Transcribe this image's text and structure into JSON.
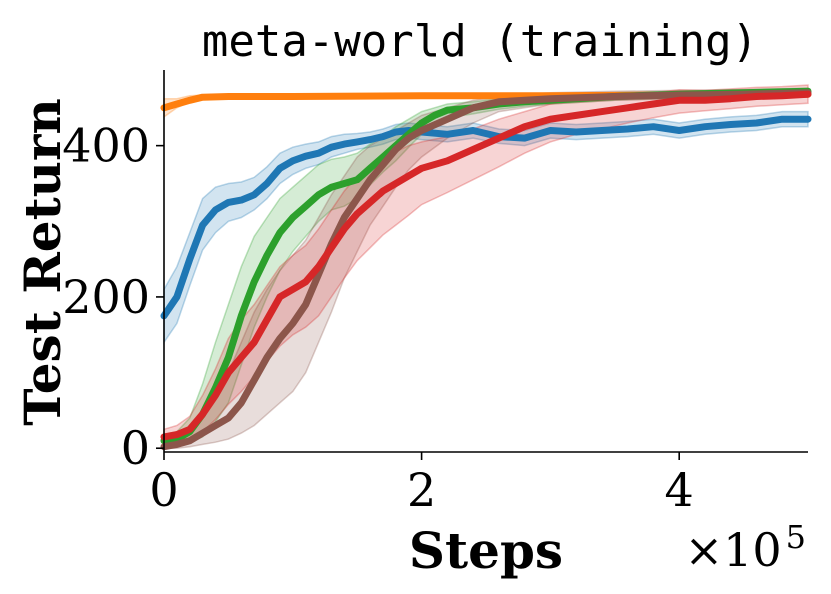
{
  "chart_data": {
    "type": "line",
    "title": "meta-world (training)",
    "xlabel": "Steps",
    "ylabel": "Test Return",
    "x_multiplier": {
      "base": "×10",
      "exponent": "5"
    },
    "xlim": [
      0,
      5
    ],
    "ylim": [
      -5,
      500
    ],
    "x_ticks": [
      {
        "value": 0,
        "label": "0"
      },
      {
        "value": 2,
        "label": "2"
      },
      {
        "value": 4,
        "label": "4"
      }
    ],
    "y_ticks": [
      {
        "value": 0,
        "label": "0"
      },
      {
        "value": 200,
        "label": "200"
      },
      {
        "value": 400,
        "label": "400"
      }
    ],
    "grid": false,
    "legend": "none",
    "series": [
      {
        "color": "#ff7f0e",
        "x": [
          0,
          0.1,
          0.2,
          0.3,
          0.5,
          1.0,
          2.0,
          3.0,
          4.0,
          5.0
        ],
        "values": [
          450,
          455,
          460,
          464,
          465,
          465,
          466,
          466,
          467,
          468
        ],
        "lower": [
          438,
          450,
          458,
          462,
          463,
          463,
          464,
          464,
          465,
          466
        ],
        "upper": [
          462,
          462,
          466,
          467,
          467,
          467,
          468,
          468,
          469,
          470
        ]
      },
      {
        "color": "#1f77b4",
        "x": [
          0,
          0.1,
          0.2,
          0.3,
          0.4,
          0.5,
          0.6,
          0.7,
          0.8,
          0.9,
          1.0,
          1.1,
          1.2,
          1.3,
          1.4,
          1.5,
          1.6,
          1.7,
          1.8,
          1.9,
          2.0,
          2.2,
          2.4,
          2.6,
          2.8,
          3.0,
          3.2,
          3.4,
          3.6,
          3.8,
          4.0,
          4.2,
          4.4,
          4.6,
          4.8,
          5.0
        ],
        "values": [
          175,
          200,
          250,
          295,
          315,
          325,
          328,
          335,
          350,
          370,
          380,
          386,
          390,
          398,
          402,
          405,
          408,
          412,
          418,
          420,
          418,
          415,
          420,
          412,
          410,
          420,
          418,
          420,
          422,
          425,
          420,
          425,
          428,
          430,
          435,
          435
        ],
        "lower": [
          140,
          165,
          215,
          262,
          285,
          300,
          305,
          315,
          330,
          350,
          362,
          370,
          375,
          385,
          390,
          395,
          398,
          402,
          408,
          410,
          408,
          405,
          410,
          403,
          400,
          410,
          408,
          410,
          412,
          415,
          410,
          415,
          418,
          420,
          425,
          425
        ],
        "upper": [
          210,
          240,
          285,
          330,
          345,
          350,
          352,
          358,
          372,
          390,
          398,
          402,
          405,
          412,
          415,
          416,
          418,
          422,
          428,
          430,
          428,
          425,
          430,
          422,
          420,
          430,
          428,
          430,
          432,
          435,
          430,
          435,
          438,
          440,
          445,
          445
        ]
      },
      {
        "color": "#2ca02c",
        "x": [
          0,
          0.1,
          0.2,
          0.3,
          0.4,
          0.5,
          0.6,
          0.7,
          0.8,
          0.9,
          1.0,
          1.1,
          1.2,
          1.3,
          1.4,
          1.5,
          1.6,
          1.7,
          1.8,
          1.9,
          2.0,
          2.1,
          2.2,
          2.4,
          2.6,
          2.8,
          3.0,
          3.5,
          4.0,
          4.5,
          5.0
        ],
        "values": [
          10,
          12,
          22,
          45,
          80,
          120,
          175,
          220,
          255,
          285,
          305,
          320,
          335,
          345,
          350,
          355,
          370,
          385,
          400,
          415,
          430,
          440,
          447,
          450,
          455,
          458,
          460,
          465,
          468,
          470,
          472
        ],
        "lower": [
          4,
          5,
          8,
          15,
          35,
          60,
          110,
          160,
          200,
          235,
          260,
          280,
          300,
          315,
          320,
          330,
          348,
          365,
          380,
          398,
          415,
          428,
          437,
          442,
          448,
          452,
          455,
          460,
          463,
          466,
          468
        ],
        "upper": [
          18,
          22,
          40,
          85,
          140,
          190,
          240,
          280,
          305,
          330,
          345,
          360,
          375,
          382,
          385,
          390,
          402,
          412,
          425,
          435,
          445,
          450,
          455,
          458,
          462,
          464,
          465,
          470,
          472,
          474,
          476
        ]
      },
      {
        "color": "#8c564b",
        "x": [
          0,
          0.1,
          0.2,
          0.3,
          0.4,
          0.5,
          0.6,
          0.7,
          0.8,
          0.9,
          1.0,
          1.1,
          1.2,
          1.3,
          1.4,
          1.5,
          1.6,
          1.7,
          1.8,
          1.9,
          2.0,
          2.2,
          2.4,
          2.6,
          2.8,
          3.0,
          3.5,
          4.0,
          4.5,
          5.0
        ],
        "values": [
          2,
          5,
          10,
          20,
          30,
          40,
          60,
          90,
          120,
          145,
          165,
          190,
          230,
          270,
          305,
          330,
          355,
          375,
          395,
          410,
          420,
          435,
          450,
          458,
          460,
          462,
          465,
          467,
          468,
          470
        ],
        "lower": [
          0,
          0,
          2,
          5,
          8,
          12,
          20,
          30,
          45,
          60,
          75,
          100,
          140,
          180,
          225,
          260,
          295,
          320,
          345,
          368,
          385,
          410,
          430,
          445,
          450,
          455,
          460,
          462,
          464,
          466
        ],
        "upper": [
          5,
          12,
          25,
          45,
          70,
          100,
          140,
          180,
          210,
          235,
          255,
          275,
          305,
          335,
          360,
          385,
          400,
          410,
          420,
          430,
          440,
          450,
          460,
          465,
          468,
          470,
          472,
          473,
          474,
          475
        ]
      },
      {
        "color": "#d62728",
        "x": [
          0,
          0.1,
          0.2,
          0.3,
          0.4,
          0.5,
          0.6,
          0.7,
          0.8,
          0.9,
          1.0,
          1.1,
          1.2,
          1.3,
          1.4,
          1.5,
          1.6,
          1.7,
          1.8,
          1.9,
          2.0,
          2.2,
          2.4,
          2.6,
          2.8,
          3.0,
          3.2,
          3.4,
          3.6,
          3.8,
          4.0,
          4.2,
          4.4,
          4.6,
          4.8,
          5.0
        ],
        "values": [
          15,
          18,
          25,
          45,
          70,
          100,
          120,
          140,
          170,
          200,
          210,
          220,
          240,
          265,
          290,
          310,
          325,
          340,
          350,
          360,
          370,
          380,
          395,
          410,
          425,
          435,
          440,
          445,
          450,
          455,
          460,
          460,
          462,
          465,
          466,
          468
        ],
        "lower": [
          5,
          8,
          12,
          22,
          38,
          58,
          75,
          95,
          115,
          135,
          150,
          160,
          175,
          200,
          225,
          248,
          265,
          282,
          295,
          308,
          322,
          338,
          355,
          372,
          390,
          405,
          415,
          422,
          430,
          437,
          443,
          446,
          449,
          452,
          454,
          456
        ],
        "upper": [
          25,
          30,
          42,
          70,
          105,
          145,
          170,
          190,
          215,
          240,
          255,
          268,
          290,
          315,
          340,
          360,
          372,
          385,
          392,
          400,
          405,
          412,
          422,
          435,
          445,
          455,
          460,
          463,
          466,
          470,
          474,
          473,
          475,
          477,
          478,
          480
        ]
      }
    ]
  }
}
